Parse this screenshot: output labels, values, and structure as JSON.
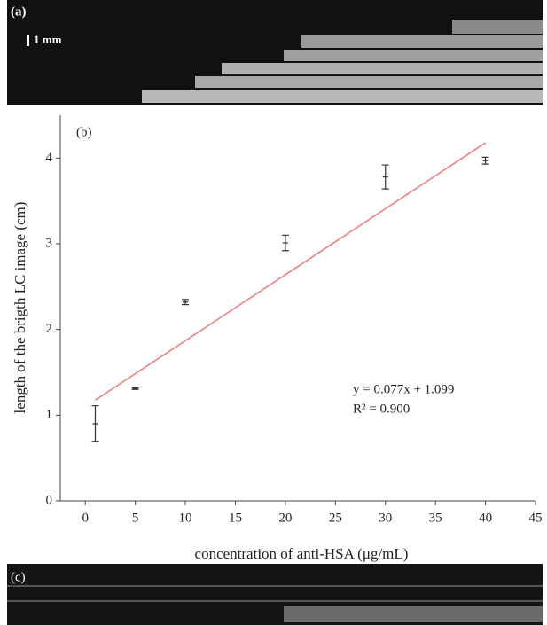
{
  "panel_labels": {
    "a": "(a)",
    "c": "(c)"
  },
  "scale_bar": "1 mm",
  "chart_data": {
    "type": "scatter",
    "panel_label": "(b)",
    "x_label": "concentration of anti-HSA (μg/mL)",
    "y_label": "length of the brigth LC image (cm)",
    "x": [
      1,
      5,
      10,
      20,
      30,
      40
    ],
    "series": [
      {
        "color": "#333333",
        "values": [
          0.9,
          1.31,
          2.32,
          3.01,
          3.78,
          3.97
        ],
        "errors": [
          0.21,
          0.01,
          0.03,
          0.09,
          0.14,
          0.04
        ]
      }
    ],
    "fit": {
      "color": "#f08080",
      "x": [
        1,
        40
      ],
      "values": [
        1.176,
        4.179
      ]
    },
    "annotations": [
      "y = 0.077x + 1.099",
      "R² = 0.900"
    ],
    "xlim": [
      -2.5,
      45
    ],
    "xticks": [
      0,
      5,
      10,
      15,
      20,
      25,
      30,
      35,
      40,
      45
    ],
    "ylim": [
      0,
      4.5
    ],
    "yticks": [
      0,
      1,
      2,
      3,
      4
    ],
    "grid": false
  }
}
